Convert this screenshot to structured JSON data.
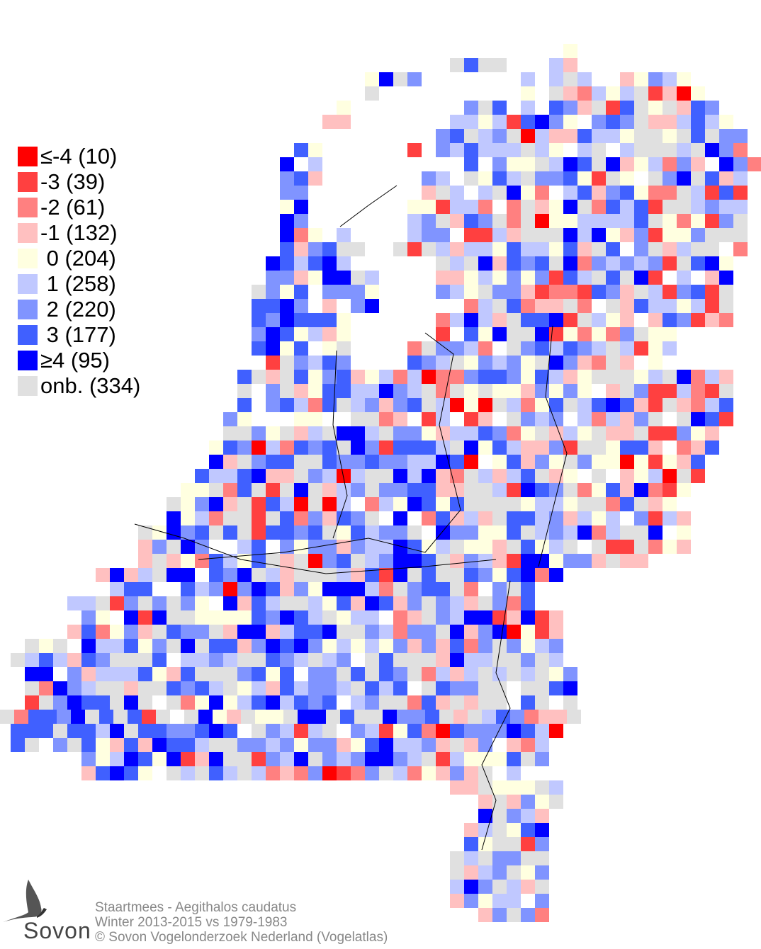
{
  "legend": {
    "items": [
      {
        "label": "≤-4 (10)",
        "color": "#ff0000"
      },
      {
        "label": "-3 (39)",
        "color": "#ff4040"
      },
      {
        "label": "-2 (61)",
        "color": "#ff8080"
      },
      {
        "label": "-1 (132)",
        "color": "#ffc0c0"
      },
      {
        "label": " 0 (204)",
        "color": "#ffffe0"
      },
      {
        "label": " 1 (258)",
        "color": "#c0c8ff"
      },
      {
        "label": " 2 (220)",
        "color": "#8094ff"
      },
      {
        "label": " 3 (177)",
        "color": "#4060ff"
      },
      {
        "label": "≥4 (95)",
        "color": "#0000ff"
      },
      {
        "label": "onb. (334)",
        "color": "#e0e0e0"
      }
    ]
  },
  "chart_data": {
    "type": "heatmap",
    "classes": [
      "≤-4",
      "-3",
      "-2",
      "-1",
      "0",
      "1",
      "2",
      "3",
      "≥4",
      "onb."
    ],
    "counts": [
      10,
      39,
      61,
      132,
      204,
      258,
      220,
      177,
      95,
      334
    ]
  },
  "caption": {
    "line1": "Staartmees - Aegithalos caudatus",
    "line2": "Winter 2013-2015 vs 1979-1983",
    "line3": "© Sovon Vogelonderzoek Nederland (Vogelatlas)"
  },
  "logo": {
    "text": "Sovon"
  }
}
